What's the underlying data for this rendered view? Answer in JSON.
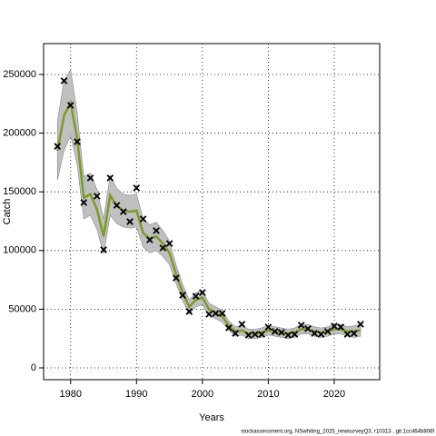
{
  "chart_data": {
    "type": "line",
    "xlabel": "Years",
    "ylabel": "Catch",
    "footnote": "stockassessment.org, NSwhiting_2025_newsurveyQ3, r10313 , git:1cc464b806f",
    "x": [
      1978,
      1979,
      1980,
      1981,
      1982,
      1983,
      1984,
      1985,
      1986,
      1987,
      1988,
      1989,
      1990,
      1991,
      1992,
      1993,
      1994,
      1995,
      1996,
      1997,
      1998,
      1999,
      2000,
      2001,
      2002,
      2003,
      2004,
      2005,
      2006,
      2007,
      2008,
      2009,
      2010,
      2011,
      2012,
      2013,
      2014,
      2015,
      2016,
      2017,
      2018,
      2019,
      2020,
      2021,
      2022,
      2023,
      2024
    ],
    "observed": {
      "color": "#000000",
      "values": [
        188800,
        244600,
        223700,
        192700,
        140900,
        161800,
        146300,
        100600,
        161800,
        138500,
        133100,
        124600,
        153300,
        126900,
        109100,
        116900,
        102200,
        106000,
        76600,
        61900,
        48000,
        61100,
        64200,
        45700,
        46400,
        46400,
        34100,
        29400,
        37200,
        27900,
        28600,
        28600,
        34800,
        31000,
        30200,
        27900,
        28600,
        36400,
        33300,
        29400,
        28600,
        31000,
        35600,
        34800,
        28600,
        29400,
        37200
      ]
    },
    "fitted": {
      "color": "#7a9a2a",
      "band_color": "#c0c0c0",
      "values": [
        185000,
        215000,
        226000,
        195000,
        145000,
        148000,
        135000,
        112000,
        147000,
        138000,
        134000,
        133000,
        134000,
        115000,
        110000,
        112000,
        106000,
        98000,
        80000,
        64000,
        52000,
        58000,
        60000,
        50000,
        47000,
        44000,
        36000,
        31000,
        32000,
        29000,
        29000,
        30000,
        32000,
        31000,
        30000,
        29000,
        30000,
        33000,
        33000,
        31000,
        30000,
        31000,
        33000,
        33000,
        31000,
        31000,
        32000
      ],
      "lower": [
        160000,
        185000,
        198000,
        173000,
        127000,
        130000,
        118000,
        97000,
        130000,
        123000,
        120000,
        119000,
        120000,
        103000,
        98000,
        100000,
        95000,
        88000,
        72000,
        57000,
        46000,
        52000,
        54000,
        45000,
        42000,
        39000,
        32000,
        27000,
        28000,
        25000,
        25000,
        26000,
        28000,
        27000,
        26000,
        25000,
        26000,
        29000,
        29000,
        27000,
        26000,
        27000,
        29000,
        29000,
        27000,
        26000,
        27000
      ],
      "upper": [
        210000,
        245000,
        254000,
        217000,
        163000,
        166000,
        152000,
        127000,
        164000,
        153000,
        148000,
        147000,
        148000,
        127000,
        122000,
        124000,
        117000,
        108000,
        88000,
        71000,
        58000,
        64000,
        66000,
        55000,
        52000,
        49000,
        40000,
        35000,
        36000,
        33000,
        33000,
        34000,
        36000,
        35000,
        34000,
        33000,
        34000,
        37000,
        37000,
        35000,
        34000,
        35000,
        37000,
        37000,
        35000,
        36000,
        37000
      ]
    },
    "xlim": [
      1975.9,
      2026.9
    ],
    "xticks": [
      1980,
      1990,
      2000,
      2010,
      2020
    ],
    "ylim": [
      -10060,
      276300
    ],
    "yticks": [
      0,
      50000,
      100000,
      150000,
      200000,
      250000
    ],
    "grid": true
  }
}
